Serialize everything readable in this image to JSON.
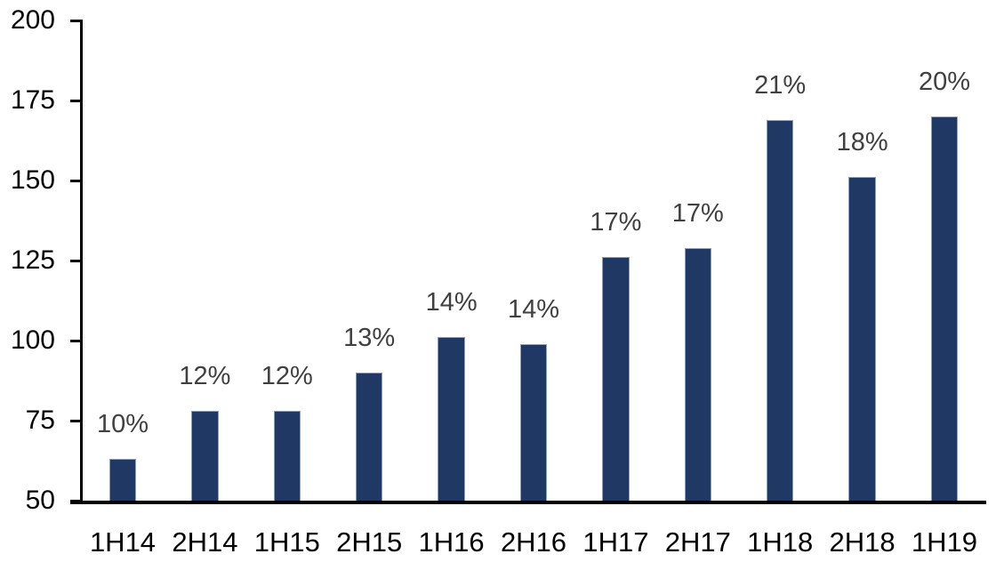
{
  "chart_data": {
    "type": "bar",
    "title": "",
    "xlabel": "",
    "ylabel": "",
    "categories": [
      "1H14",
      "2H14",
      "1H15",
      "2H15",
      "1H16",
      "2H16",
      "1H17",
      "2H17",
      "1H18",
      "2H18",
      "1H19"
    ],
    "values": [
      63,
      78,
      78,
      90,
      101,
      99,
      126,
      129,
      169,
      151,
      170
    ],
    "data_labels": [
      "10%",
      "12%",
      "12%",
      "13%",
      "14%",
      "14%",
      "17%",
      "17%",
      "21%",
      "18%",
      "20%"
    ],
    "y_axis": {
      "min": 50,
      "max": 200,
      "tick_interval": 25,
      "tick_labels": [
        "50",
        "75",
        "100",
        "125",
        "150",
        "175",
        "200"
      ]
    },
    "grid": false,
    "legend_position": "none",
    "colors": {
      "bar_fill": "#1F3864",
      "bar_edge": "#8E9FBC",
      "data_label": "#404040",
      "axis": "#000000",
      "background": "#FFFFFF"
    }
  }
}
